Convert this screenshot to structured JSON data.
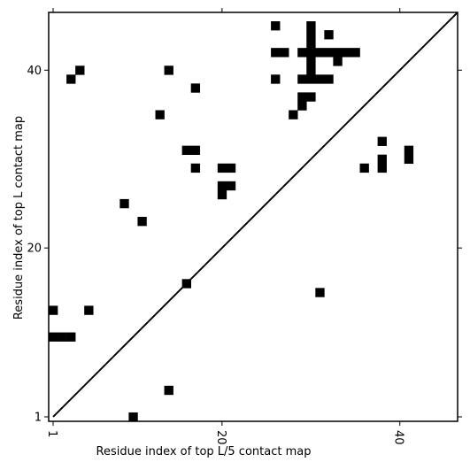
{
  "chart_data": {
    "type": "heatmap",
    "title": "",
    "xlabel": "Residue index of top L/5 contact map",
    "ylabel": "Residue index of top L contact map",
    "xlim": [
      0.5,
      46.5
    ],
    "ylim": [
      0.5,
      46.5
    ],
    "x_ticks": [
      {
        "value": 1,
        "label": "1"
      },
      {
        "value": 20,
        "label": "20"
      },
      {
        "value": 40,
        "label": "40"
      }
    ],
    "y_ticks": [
      {
        "value": 1,
        "label": "1"
      },
      {
        "value": 20,
        "label": "20"
      },
      {
        "value": 40,
        "label": "40"
      }
    ],
    "x_tick_label_rotation": -90,
    "diagonal": true,
    "grid": false,
    "colors": {
      "contact": "#000000",
      "background": "#ffffff",
      "axes": "#000000"
    },
    "lower_contacts": [
      [
        1,
        13
      ],
      [
        1,
        10
      ],
      [
        2,
        10
      ],
      [
        3,
        10
      ],
      [
        5,
        13
      ],
      [
        10,
        1
      ],
      [
        14,
        4
      ],
      [
        16,
        16
      ],
      [
        31,
        15
      ]
    ],
    "upper_contacts": [
      [
        3,
        39
      ],
      [
        4,
        40
      ],
      [
        9,
        25
      ],
      [
        11,
        23
      ],
      [
        13,
        35
      ],
      [
        14,
        40
      ],
      [
        16,
        31
      ],
      [
        17,
        31
      ],
      [
        17,
        29
      ],
      [
        17,
        38
      ],
      [
        20,
        29
      ],
      [
        21,
        29
      ],
      [
        20,
        27
      ],
      [
        21,
        27
      ],
      [
        20,
        26
      ],
      [
        26,
        45
      ],
      [
        30,
        45
      ],
      [
        26,
        42
      ],
      [
        27,
        42
      ],
      [
        32,
        44
      ],
      [
        30,
        44
      ],
      [
        30,
        43
      ],
      [
        29,
        42
      ],
      [
        30,
        42
      ],
      [
        31,
        42
      ],
      [
        32,
        42
      ],
      [
        33,
        42
      ],
      [
        34,
        42
      ],
      [
        35,
        42
      ],
      [
        26,
        39
      ],
      [
        29,
        39
      ],
      [
        30,
        39
      ],
      [
        31,
        39
      ],
      [
        32,
        39
      ],
      [
        30,
        41
      ],
      [
        33,
        41
      ],
      [
        30,
        40
      ],
      [
        29,
        37
      ],
      [
        30,
        37
      ],
      [
        29,
        36
      ],
      [
        28,
        35
      ],
      [
        36,
        29
      ],
      [
        38,
        29
      ],
      [
        38,
        30
      ],
      [
        38,
        32
      ],
      [
        41,
        30
      ],
      [
        41,
        31
      ]
    ]
  }
}
